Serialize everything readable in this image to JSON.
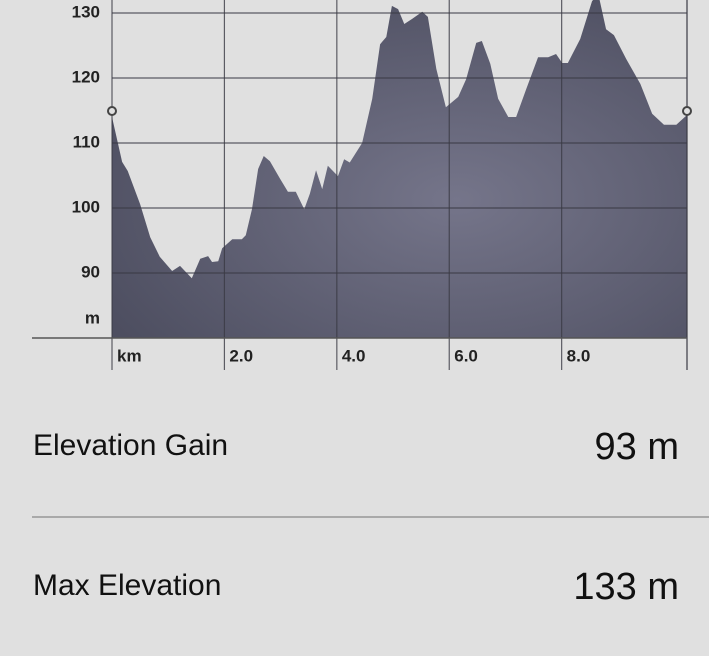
{
  "chart_data": {
    "type": "area",
    "ylabel": "m",
    "x": [
      0,
      0.18,
      0.28,
      0.5,
      0.68,
      0.85,
      1.07,
      1.21,
      1.42,
      1.57,
      1.71,
      1.78,
      1.89,
      1.96,
      2.14,
      2.31,
      2.38,
      2.49,
      2.6,
      2.7,
      2.81,
      2.99,
      3.13,
      3.27,
      3.42,
      3.52,
      3.63,
      3.74,
      3.84,
      4.02,
      4.13,
      4.23,
      4.45,
      4.63,
      4.77,
      4.88,
      4.98,
      5.09,
      5.2,
      5.34,
      5.52,
      5.62,
      5.77,
      5.94,
      6.16,
      6.3,
      6.48,
      6.58,
      6.73,
      6.87,
      7.05,
      7.19,
      7.37,
      7.58,
      7.76,
      7.9,
      8.01,
      8.11,
      8.33,
      8.54,
      8.65,
      8.79,
      8.93,
      9.15,
      9.4,
      9.61,
      9.82,
      10.04,
      10.23
    ],
    "values": [
      114,
      107.1,
      105.7,
      100.6,
      95.5,
      92.5,
      90.3,
      91.1,
      89.2,
      92.2,
      92.6,
      91.7,
      91.8,
      93.8,
      95.2,
      95.2,
      95.8,
      99.8,
      106,
      108,
      107.2,
      104.5,
      102.5,
      102.5,
      99.8,
      102.2,
      105.8,
      102.9,
      106.5,
      104.9,
      107.5,
      107,
      110,
      116.8,
      125.2,
      126.3,
      131.1,
      130.6,
      128.3,
      129.1,
      130.2,
      129.4,
      121.4,
      115.5,
      117.1,
      119.8,
      125.4,
      125.7,
      122.2,
      116.8,
      114,
      114,
      118.3,
      123.2,
      123.2,
      123.7,
      122.3,
      122.3,
      126,
      131.8,
      133,
      127.5,
      126.6,
      122.9,
      119.1,
      114.5,
      112.8,
      112.8,
      114.3
    ],
    "xlim": [
      0,
      10.23
    ],
    "ylim": [
      80,
      132
    ],
    "xticks": [
      {
        "value": 0,
        "label": "km"
      },
      {
        "value": 2,
        "label": "2.0"
      },
      {
        "value": 4,
        "label": "4.0"
      },
      {
        "value": 6,
        "label": "6.0"
      },
      {
        "value": 8,
        "label": "8.0"
      }
    ],
    "yticks": [
      90,
      100,
      110,
      120,
      130
    ],
    "grid": true
  },
  "stats": [
    {
      "label": "Elevation Gain",
      "value": "93 m"
    },
    {
      "label": "Max Elevation",
      "value": "133 m"
    }
  ]
}
